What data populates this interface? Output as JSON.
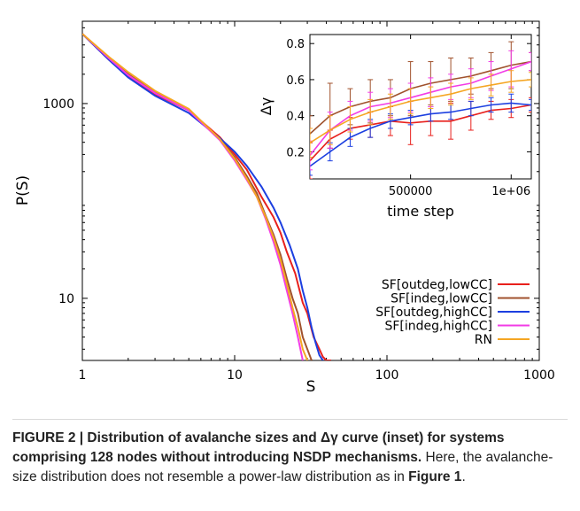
{
  "chart_data": [
    {
      "type": "line",
      "title": "",
      "xlabel": "S",
      "ylabel": "P(S)",
      "xscale": "log",
      "yscale": "log",
      "xlim": [
        1,
        1000
      ],
      "ylim": [
        2.3,
        7000
      ],
      "xticks": [
        {
          "v": 1,
          "label": "1"
        },
        {
          "v": 10,
          "label": "10"
        },
        {
          "v": 100,
          "label": "100"
        },
        {
          "v": 1000,
          "label": "1000"
        }
      ],
      "yticks": [
        {
          "v": 10,
          "label": "10"
        },
        {
          "v": 1000,
          "label": "1000"
        }
      ],
      "legend": "bottom-right",
      "series": [
        {
          "name": "SF[outdeg,lowCC]",
          "color": "#e8201c",
          "x": [
            1,
            1.5,
            2,
            3,
            5,
            8,
            10,
            12,
            15,
            18,
            20,
            22,
            25,
            28,
            30,
            33,
            36,
            38,
            40,
            42,
            43
          ],
          "y": [
            5200,
            2800,
            1900,
            1250,
            850,
            450,
            300,
            210,
            110,
            68,
            47,
            30,
            18,
            9,
            7,
            4,
            3,
            2.5,
            2.3,
            2.3,
            2.3
          ]
        },
        {
          "name": "SF[indeg,lowCC]",
          "color": "#a0522d",
          "x": [
            1,
            1.5,
            2,
            3,
            5,
            8,
            10,
            12,
            14,
            16,
            18,
            20,
            22,
            24,
            26,
            28,
            30,
            32
          ],
          "y": [
            5200,
            2900,
            2000,
            1300,
            860,
            430,
            280,
            180,
            120,
            70,
            45,
            28,
            16,
            10,
            7,
            4,
            3,
            2.3
          ]
        },
        {
          "name": "SF[outdeg,highCC]",
          "color": "#1c3fe0",
          "x": [
            1,
            1.5,
            2,
            3,
            5,
            8,
            10,
            12,
            15,
            18,
            20,
            23,
            26,
            28,
            30,
            32,
            34,
            36,
            38
          ],
          "y": [
            5200,
            2800,
            1850,
            1200,
            800,
            440,
            320,
            230,
            140,
            85,
            60,
            35,
            20,
            12,
            8,
            5,
            3.5,
            2.6,
            2.3
          ]
        },
        {
          "name": "SF[indeg,highCC]",
          "color": "#f23ce6",
          "x": [
            1,
            1.5,
            2,
            3,
            5,
            8,
            10,
            12,
            14,
            16,
            18,
            20,
            22,
            24,
            26,
            28
          ],
          "y": [
            5200,
            2900,
            1950,
            1280,
            850,
            420,
            260,
            165,
            110,
            65,
            38,
            22,
            12,
            7,
            4,
            2.3
          ]
        },
        {
          "name": "RN",
          "color": "#f5a623",
          "x": [
            1,
            1.5,
            2,
            3,
            5,
            8,
            10,
            12,
            14,
            16,
            18,
            20,
            22,
            24,
            26,
            28,
            30
          ],
          "y": [
            5200,
            3000,
            2100,
            1350,
            880,
            430,
            270,
            170,
            110,
            68,
            42,
            25,
            14,
            8,
            5,
            3,
            2.3
          ]
        }
      ]
    },
    {
      "type": "line",
      "title": "",
      "xlabel": "time step",
      "ylabel": "Δγ",
      "xlim": [
        0,
        1100000
      ],
      "ylim": [
        0.05,
        0.85
      ],
      "xticks": [
        {
          "v": 500000,
          "label": "500000"
        },
        {
          "v": 1000000,
          "label": "1e+06"
        }
      ],
      "yticks": [
        {
          "v": 0.2,
          "label": "0.2"
        },
        {
          "v": 0.4,
          "label": "0.4"
        },
        {
          "v": 0.6,
          "label": "0.6"
        },
        {
          "v": 0.8,
          "label": "0.8"
        }
      ],
      "series": [
        {
          "name": "SF[outdeg,lowCC]",
          "color": "#e8201c",
          "x": [
            0,
            100000,
            200000,
            300000,
            400000,
            500000,
            600000,
            700000,
            800000,
            900000,
            1000000,
            1100000
          ],
          "y": [
            0.15,
            0.27,
            0.33,
            0.35,
            0.37,
            0.36,
            0.37,
            0.37,
            0.4,
            0.43,
            0.44,
            0.46
          ],
          "err": [
            0.1,
            0.05,
            0.06,
            0.07,
            0.08,
            0.12,
            0.08,
            0.1,
            0.08,
            0.05,
            0.05,
            0.04
          ]
        },
        {
          "name": "SF[indeg,lowCC]",
          "color": "#a0522d",
          "x": [
            0,
            100000,
            200000,
            300000,
            400000,
            500000,
            600000,
            700000,
            800000,
            900000,
            1000000,
            1100000
          ],
          "y": [
            0.3,
            0.4,
            0.45,
            0.48,
            0.5,
            0.55,
            0.58,
            0.6,
            0.62,
            0.65,
            0.68,
            0.7
          ],
          "err": [
            0.1,
            0.18,
            0.1,
            0.12,
            0.1,
            0.15,
            0.12,
            0.12,
            0.1,
            0.1,
            0.13,
            0.05
          ]
        },
        {
          "name": "SF[outdeg,highCC]",
          "color": "#1c3fe0",
          "x": [
            0,
            100000,
            200000,
            300000,
            400000,
            500000,
            600000,
            700000,
            800000,
            900000,
            1000000,
            1100000
          ],
          "y": [
            0.12,
            0.2,
            0.28,
            0.33,
            0.37,
            0.39,
            0.41,
            0.42,
            0.44,
            0.46,
            0.47,
            0.46
          ],
          "err": [
            0.05,
            0.05,
            0.05,
            0.05,
            0.04,
            0.04,
            0.04,
            0.04,
            0.04,
            0.04,
            0.05,
            0.03
          ]
        },
        {
          "name": "SF[indeg,highCC]",
          "color": "#f23ce6",
          "x": [
            0,
            100000,
            200000,
            300000,
            400000,
            500000,
            600000,
            700000,
            800000,
            900000,
            1000000,
            1100000
          ],
          "y": [
            0.18,
            0.32,
            0.4,
            0.45,
            0.47,
            0.5,
            0.53,
            0.56,
            0.58,
            0.62,
            0.66,
            0.7
          ],
          "err": [
            0.08,
            0.1,
            0.08,
            0.08,
            0.08,
            0.08,
            0.08,
            0.07,
            0.08,
            0.08,
            0.1,
            0.05
          ]
        },
        {
          "name": "RN",
          "color": "#f5a623",
          "x": [
            0,
            100000,
            200000,
            300000,
            400000,
            500000,
            600000,
            700000,
            800000,
            900000,
            1000000,
            1100000
          ],
          "y": [
            0.25,
            0.32,
            0.38,
            0.42,
            0.45,
            0.48,
            0.5,
            0.52,
            0.55,
            0.57,
            0.59,
            0.6
          ],
          "err": [
            0.08,
            0.08,
            0.07,
            0.07,
            0.07,
            0.07,
            0.06,
            0.06,
            0.06,
            0.06,
            0.06,
            0.04
          ]
        }
      ]
    }
  ],
  "caption": {
    "lead": "FIGURE 2 | Distribution of avalanche sizes and Δγ curve (inset) for systems comprising 128 nodes without introducing NSDP mechanisms.",
    "body_before": " Here, the avalanche-size distribution does not resemble a power-law distribution as in ",
    "figure_ref": "Figure 1",
    "body_after": "."
  }
}
